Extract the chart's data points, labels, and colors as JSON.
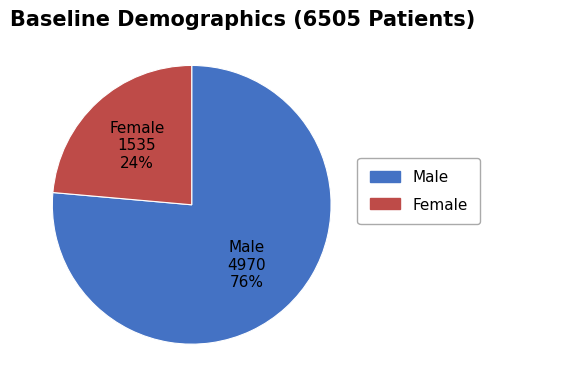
{
  "title": "Baseline Demographics (6505 Patients)",
  "slices": [
    {
      "label": "Male",
      "value": 4970,
      "pct": 76,
      "color": "#4472C4"
    },
    {
      "label": "Female",
      "value": 1535,
      "pct": 24,
      "color": "#BE4B48"
    }
  ],
  "startangle": 90,
  "background_color": "#FFFFFF",
  "title_fontsize": 15,
  "label_fontsize": 11,
  "legend_fontsize": 11
}
